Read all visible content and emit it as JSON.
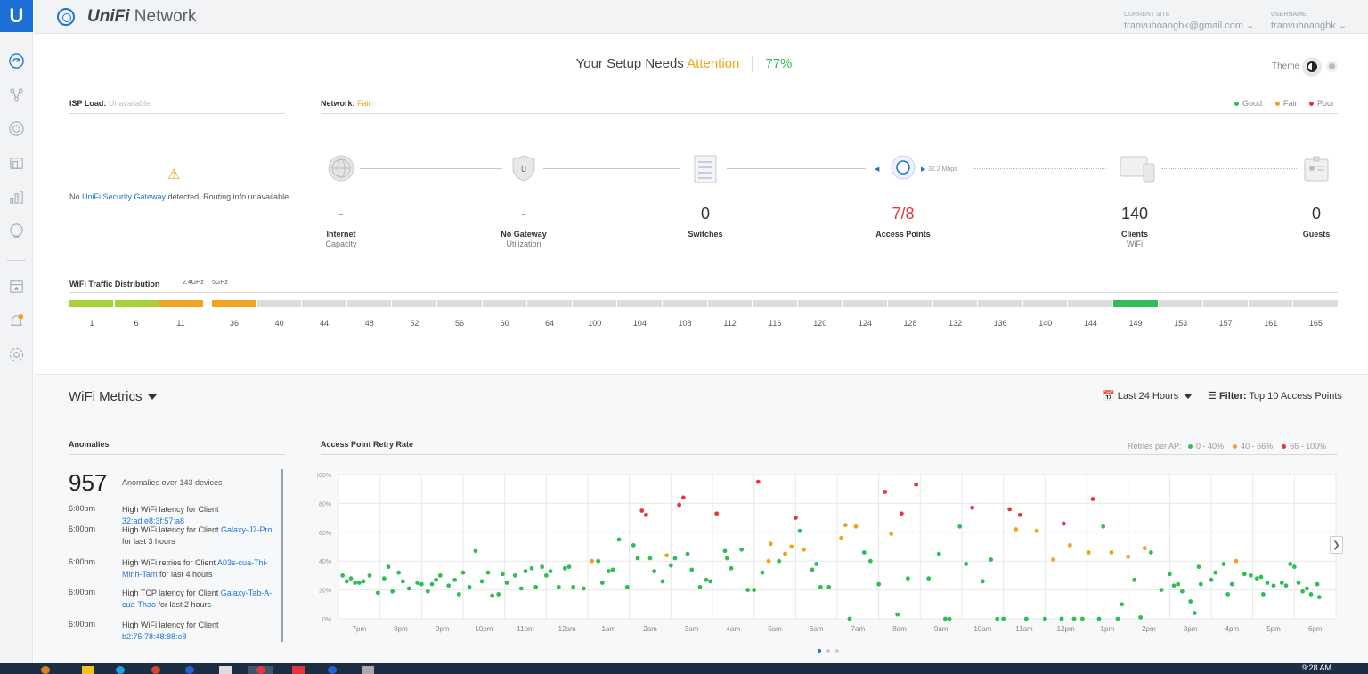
{
  "app": {
    "brand_bold": "UniFi",
    "brand_rest": " Network"
  },
  "sidebar": {
    "logo_label": "U"
  },
  "header": {
    "current_site_label": "CURRENT SITE",
    "current_site_value": "tranvuhoangbk@gmail.com",
    "username_label": "USERNAME",
    "username_value": "tranvuhoangbk"
  },
  "setup": {
    "prefix": "Your Setup Needs",
    "status": "Attention",
    "percent": "77%"
  },
  "theme": {
    "label": "Theme"
  },
  "isp": {
    "label": "ISP Load:",
    "value": "Unavailable",
    "msg_pre": "No ",
    "msg_link": "UniFi Security Gateway",
    "msg_post": " detected. Routing info unavailable."
  },
  "network": {
    "label": "Network:",
    "value": "Fair"
  },
  "legend": {
    "good": "Good",
    "fair": "Fair",
    "poor": "Poor",
    "good_color": "#2fbd57",
    "fair_color": "#f4a11d",
    "poor_color": "#e8353d"
  },
  "topology": {
    "ap_speed": "32.2 Mbps"
  },
  "stats": [
    {
      "value": "-",
      "label": "Internet",
      "sub": "Capacity"
    },
    {
      "value": "-",
      "label": "No Gateway",
      "sub": "Utilization"
    },
    {
      "value": "0",
      "label": "Switches",
      "sub": ""
    },
    {
      "value": "7/8",
      "label": "Access Points",
      "sub": ""
    },
    {
      "value": "140",
      "label": "Clients",
      "sub": "WiFi"
    },
    {
      "value": "0",
      "label": "Guests",
      "sub": ""
    }
  ],
  "wifi_distribution": {
    "title": "WiFi Traffic Distribution",
    "band_a": "2.4GHz",
    "band_b": "5GHz",
    "channels_24": [
      "1",
      "6",
      "11"
    ],
    "channels_5": [
      "36",
      "40",
      "44",
      "48",
      "52",
      "56",
      "60",
      "64",
      "100",
      "104",
      "108",
      "112",
      "116",
      "120",
      "124",
      "128",
      "132",
      "136",
      "140",
      "144",
      "149",
      "153",
      "157",
      "161",
      "165"
    ],
    "bar_colors_24": [
      "#a9d13a",
      "#a9d13a",
      "#f4a11d"
    ],
    "bar_colors_5": [
      "#f4a11d",
      "#dcdcdc",
      "#dcdcdc",
      "#dcdcdc",
      "#dcdcdc",
      "#dcdcdc",
      "#dcdcdc",
      "#dcdcdc",
      "#dcdcdc",
      "#dcdcdc",
      "#dcdcdc",
      "#dcdcdc",
      "#dcdcdc",
      "#dcdcdc",
      "#dcdcdc",
      "#dcdcdc",
      "#dcdcdc",
      "#dcdcdc",
      "#dcdcdc",
      "#dcdcdc",
      "#2fbd57",
      "#dcdcdc",
      "#dcdcdc",
      "#dcdcdc",
      "#dcdcdc"
    ]
  },
  "metrics": {
    "title": "WiFi Metrics",
    "range": "Last 24 Hours",
    "filter_label": "Filter:",
    "filter_value": "Top 10 Access Points"
  },
  "anomalies": {
    "title": "Anomalies",
    "count": "957",
    "summary": "Anomalies over 143 devices",
    "items": [
      {
        "time": "6:00pm",
        "pre": "High WiFi latency for Client ",
        "link": "32:ad:e8:3f:57:a8",
        "post": ""
      },
      {
        "time": "6:00pm",
        "pre": "High WiFi latency for Client ",
        "link": "Galaxy-J7-Pro",
        "post": " for last 3 hours"
      },
      {
        "time": "6:00pm",
        "pre": "High WiFi retries for Client ",
        "link": "A03s-cua-Thi-Minh-Tam",
        "post": " for last 4 hours"
      },
      {
        "time": "6:00pm",
        "pre": "High TCP latency for Client ",
        "link": "Galaxy-Tab-A-cua-Thao",
        "post": " for last 2 hours"
      },
      {
        "time": "6:00pm",
        "pre": "High WiFi latency for Client ",
        "link": "b2:75:78:48:88:e8",
        "post": ""
      }
    ]
  },
  "chart_data": {
    "type": "scatter",
    "title": "Access Point Retry Rate",
    "legend_title": "Retries per AP:",
    "legend": [
      {
        "name": "0 - 40%",
        "color": "#2fbd57"
      },
      {
        "name": "40 - 66%",
        "color": "#f4a11d"
      },
      {
        "name": "66 - 100%",
        "color": "#e8353d"
      }
    ],
    "ylim": [
      0,
      100
    ],
    "yticks": [
      "0%",
      "20%",
      "40%",
      "60%",
      "80%",
      "100%"
    ],
    "xticks": [
      "7pm",
      "8pm",
      "9pm",
      "10pm",
      "11pm",
      "12am",
      "1am",
      "2am",
      "3am",
      "4am",
      "5am",
      "6am",
      "7am",
      "8am",
      "9am",
      "10am",
      "11am",
      "12pm",
      "1pm",
      "2pm",
      "3pm",
      "4pm",
      "5pm",
      "6pm"
    ],
    "grid": true,
    "points": [
      [
        0.1,
        30
      ],
      [
        0.2,
        26
      ],
      [
        0.3,
        28
      ],
      [
        0.4,
        25
      ],
      [
        0.5,
        25
      ],
      [
        0.6,
        26
      ],
      [
        0.75,
        30
      ],
      [
        0.95,
        18
      ],
      [
        1.1,
        28
      ],
      [
        1.2,
        36
      ],
      [
        1.3,
        19
      ],
      [
        1.45,
        32
      ],
      [
        1.55,
        26
      ],
      [
        1.7,
        21
      ],
      [
        1.9,
        25
      ],
      [
        2.0,
        24
      ],
      [
        2.15,
        19
      ],
      [
        2.25,
        24
      ],
      [
        2.35,
        27
      ],
      [
        2.45,
        30
      ],
      [
        2.65,
        23
      ],
      [
        2.8,
        27
      ],
      [
        2.9,
        17
      ],
      [
        3.0,
        32
      ],
      [
        3.15,
        22
      ],
      [
        3.3,
        47
      ],
      [
        3.45,
        26
      ],
      [
        3.6,
        32
      ],
      [
        3.7,
        16
      ],
      [
        3.85,
        17
      ],
      [
        3.95,
        31
      ],
      [
        4.05,
        25
      ],
      [
        4.25,
        30
      ],
      [
        4.4,
        21
      ],
      [
        4.5,
        33
      ],
      [
        4.65,
        35
      ],
      [
        4.75,
        22
      ],
      [
        4.9,
        36
      ],
      [
        5.0,
        30
      ],
      [
        5.1,
        33
      ],
      [
        5.3,
        22
      ],
      [
        5.45,
        35
      ],
      [
        5.55,
        36
      ],
      [
        5.65,
        22
      ],
      [
        5.9,
        21
      ],
      [
        6.1,
        40
      ],
      [
        6.25,
        40
      ],
      [
        6.35,
        25
      ],
      [
        6.5,
        33
      ],
      [
        6.6,
        34
      ],
      [
        6.75,
        55
      ],
      [
        6.95,
        22
      ],
      [
        7.1,
        51
      ],
      [
        7.2,
        42
      ],
      [
        7.3,
        75
      ],
      [
        7.4,
        72
      ],
      [
        7.5,
        42
      ],
      [
        7.6,
        33
      ],
      [
        7.8,
        26
      ],
      [
        7.9,
        44
      ],
      [
        8.0,
        37
      ],
      [
        8.1,
        42
      ],
      [
        8.2,
        79
      ],
      [
        8.3,
        84
      ],
      [
        8.4,
        45
      ],
      [
        8.5,
        34
      ],
      [
        8.7,
        22
      ],
      [
        8.85,
        27
      ],
      [
        8.95,
        26
      ],
      [
        9.1,
        73
      ],
      [
        9.3,
        47
      ],
      [
        9.35,
        42
      ],
      [
        9.45,
        35
      ],
      [
        9.7,
        48
      ],
      [
        9.85,
        20
      ],
      [
        10.0,
        20
      ],
      [
        10.1,
        95
      ],
      [
        10.2,
        32
      ],
      [
        10.35,
        40
      ],
      [
        10.4,
        52
      ],
      [
        10.6,
        40
      ],
      [
        10.75,
        45
      ],
      [
        10.9,
        50
      ],
      [
        11.0,
        70
      ],
      [
        11.1,
        61
      ],
      [
        11.2,
        48
      ],
      [
        11.4,
        34
      ],
      [
        11.5,
        38
      ],
      [
        11.6,
        22
      ],
      [
        11.8,
        22
      ],
      [
        12.1,
        56
      ],
      [
        12.2,
        65
      ],
      [
        12.3,
        0
      ],
      [
        12.45,
        64
      ],
      [
        12.65,
        46
      ],
      [
        12.8,
        40
      ],
      [
        13.0,
        24
      ],
      [
        13.15,
        88
      ],
      [
        13.3,
        59
      ],
      [
        13.45,
        3
      ],
      [
        13.55,
        73
      ],
      [
        13.7,
        28
      ],
      [
        13.9,
        93
      ],
      [
        14.2,
        28
      ],
      [
        14.45,
        45
      ],
      [
        14.6,
        0
      ],
      [
        14.7,
        0
      ],
      [
        14.95,
        64
      ],
      [
        15.1,
        38
      ],
      [
        15.25,
        77
      ],
      [
        15.5,
        26
      ],
      [
        15.7,
        41
      ],
      [
        15.85,
        0
      ],
      [
        16.0,
        0
      ],
      [
        16.15,
        76
      ],
      [
        16.3,
        62
      ],
      [
        16.4,
        72
      ],
      [
        16.55,
        0
      ],
      [
        16.8,
        61
      ],
      [
        17.0,
        0
      ],
      [
        17.2,
        41
      ],
      [
        17.4,
        0
      ],
      [
        17.45,
        66
      ],
      [
        17.6,
        51
      ],
      [
        17.7,
        0
      ],
      [
        17.9,
        0
      ],
      [
        18.05,
        46
      ],
      [
        18.15,
        83
      ],
      [
        18.3,
        0
      ],
      [
        18.4,
        64
      ],
      [
        18.6,
        46
      ],
      [
        18.75,
        0
      ],
      [
        18.85,
        10
      ],
      [
        19.0,
        43
      ],
      [
        19.15,
        27
      ],
      [
        19.3,
        1
      ],
      [
        19.4,
        49
      ],
      [
        19.55,
        46
      ],
      [
        19.8,
        20
      ],
      [
        20.0,
        31
      ],
      [
        20.1,
        23
      ],
      [
        20.2,
        24
      ],
      [
        20.3,
        19
      ],
      [
        20.5,
        12
      ],
      [
        20.6,
        4
      ],
      [
        20.7,
        36
      ],
      [
        20.75,
        24
      ],
      [
        21.0,
        27
      ],
      [
        21.1,
        32
      ],
      [
        21.3,
        38
      ],
      [
        21.4,
        17
      ],
      [
        21.5,
        24
      ],
      [
        21.6,
        40
      ],
      [
        21.8,
        31
      ],
      [
        21.95,
        30
      ],
      [
        22.1,
        28
      ],
      [
        22.2,
        29
      ],
      [
        22.25,
        17
      ],
      [
        22.35,
        25
      ],
      [
        22.5,
        23
      ],
      [
        22.7,
        25
      ],
      [
        22.8,
        23
      ],
      [
        22.9,
        38
      ],
      [
        23.0,
        36
      ],
      [
        23.1,
        25
      ],
      [
        23.2,
        19
      ],
      [
        23.3,
        21
      ],
      [
        23.4,
        17
      ],
      [
        23.55,
        24
      ],
      [
        23.6,
        15
      ]
    ]
  },
  "clock": {
    "time": "9:28 AM"
  }
}
